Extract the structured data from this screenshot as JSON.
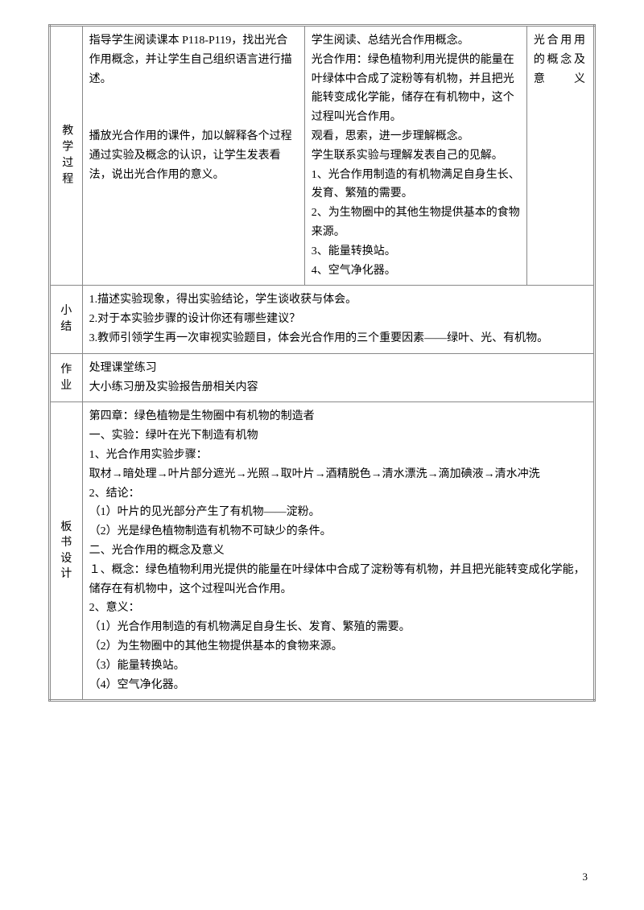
{
  "process": {
    "label": "教学过程",
    "teacher_p1": "指导学生阅读课本 P118-P119，找出光合作用概念，并让学生自己组织语言进行描述。",
    "teacher_p2": "播放光合作用的课件，加以解释各个过程通过实验及概念的认识，让学生发表看法，说出光合作用的意义。",
    "student_p1": "学生阅读、总结光合作用概念。",
    "student_p2": "光合作用：绿色植物利用光提供的能量在叶绿体中合成了淀粉等有机物，并且把光能转变成化学能，储存在有机物中，这个过程叫光合作用。",
    "student_p3": "观看，思索，进一步理解概念。",
    "student_p4": "学生联系实验与理解发表自己的见解。",
    "student_l1": "1、光合作用制造的有机物满足自身生长、发育、繁殖的需要。",
    "student_l2": "2、为生物圈中的其他生物提供基本的食物来源。",
    "student_l3": "3、能量转换站。",
    "student_l4": "4、空气净化器。",
    "note": "光合用用的概念及意义"
  },
  "summary": {
    "label": "小结",
    "l1": "1.描述实验现象，得出实验结论，学生谈收获与体会。",
    "l2": "2.对于本实验步骤的设计你还有哪些建议？",
    "l3": "3.教师引领学生再一次审视实验题目，体会光合作用的三个重要因素——绿叶、光、有机物。"
  },
  "homework": {
    "label": "作业",
    "l1": "处理课堂练习",
    "l2": "大小练习册及实验报告册相关内容"
  },
  "board": {
    "label": "板书设计",
    "l1": "第四章：绿色植物是生物圈中有机物的制造者",
    "l2": "一、实验：绿叶在光下制造有机物",
    "l3": "1、光合作用实验步骤：",
    "l4": "取材→暗处理→叶片部分遮光→光照→取叶片→酒精脱色→清水漂洗→滴加碘液→清水冲洗",
    "l5": "2、结论：",
    "l6": "（1）叶片的见光部分产生了有机物——淀粉。",
    "l7": "（2）光是绿色植物制造有机物不可缺少的条件。",
    "l8": "二、光合作用的概念及意义",
    "l9": "１、概念：绿色植物利用光提供的能量在叶绿体中合成了淀粉等有机物，并且把光能转变成化学能，储存在有机物中，这个过程叫光合作用。",
    "l10": "2、意义：",
    "l11": "（1）光合作用制造的有机物满足自身生长、发育、繁殖的需要。",
    "l12": "（2）为生物圈中的其他生物提供基本的食物来源。",
    "l13": "（3）能量转换站。",
    "l14": "（4）空气净化器。"
  },
  "page": "3"
}
